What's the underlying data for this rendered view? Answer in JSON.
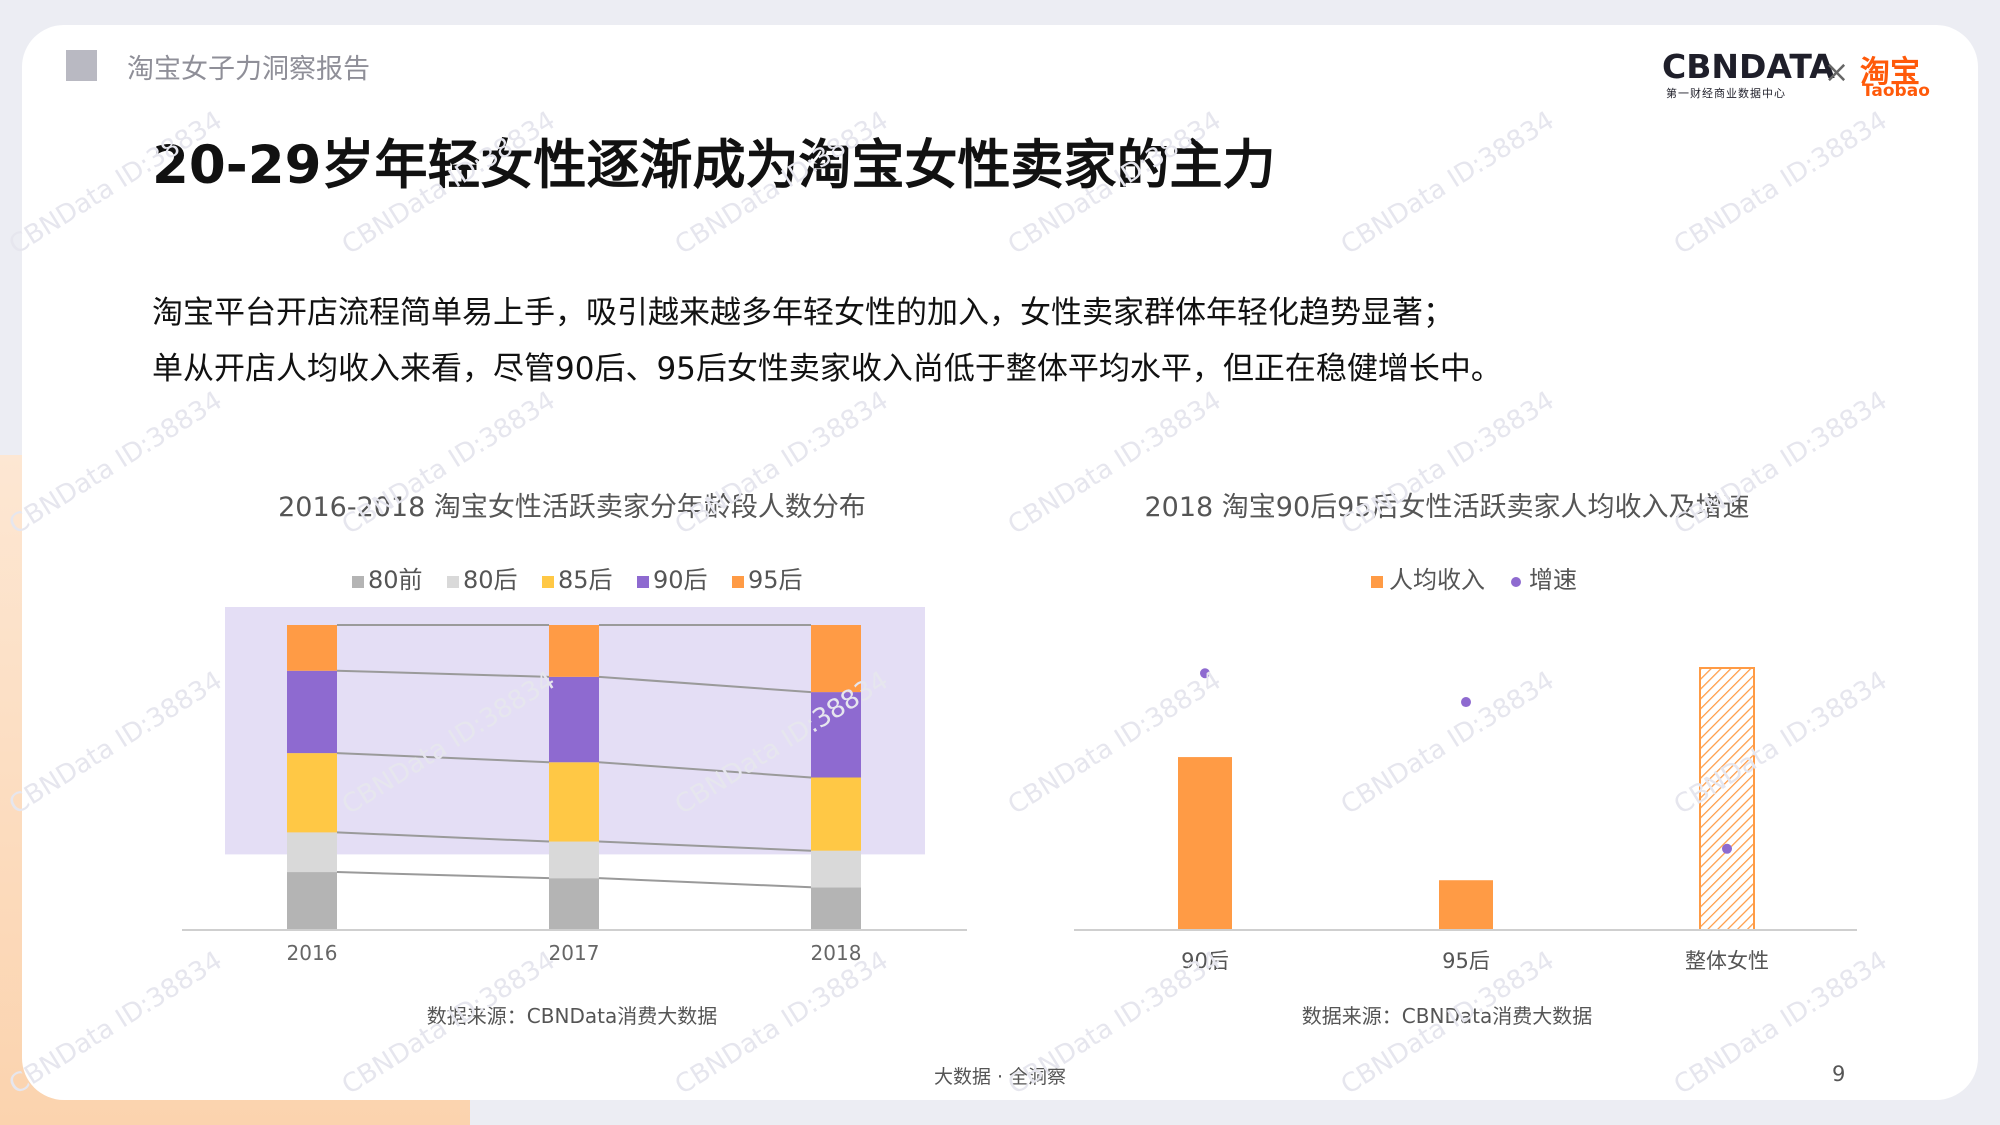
{
  "header": {
    "report_name": "淘宝女子力洞察报告"
  },
  "logos": {
    "cbn": "CBNDATA",
    "cbn_sub": "第一财经商业数据中心",
    "separator": "×",
    "taobao": "淘宝",
    "taobao_sub": "Taobao"
  },
  "title": "20-29岁年轻女性逐渐成为淘宝女性卖家的主力",
  "body": [
    "淘宝平台开店流程简单易上手，吸引越来越多年轻女性的加入，女性卖家群体年轻化趋势显著；",
    "单从开店人均收入来看，尽管90后、95后女性卖家收入尚低于整体平均水平，但正在稳健增长中。"
  ],
  "colors": {
    "c80qian": "#b4b4b4",
    "c80hou": "#d9d9d9",
    "c85hou": "#ffc845",
    "c90hou": "#8e6ad0",
    "c95hou": "#ff9b45",
    "highlight": "#e4def5",
    "dot": "#8e6ad0"
  },
  "chart_data": [
    {
      "type": "bar",
      "stacked": true,
      "title": "2016-2018 淘宝女性活跃卖家分年龄段人数分布",
      "categories": [
        "2016",
        "2017",
        "2018"
      ],
      "series": [
        {
          "name": "80前",
          "values": [
            19,
            17,
            14
          ]
        },
        {
          "name": "80后",
          "values": [
            13,
            12,
            12
          ]
        },
        {
          "name": "85后",
          "values": [
            26,
            26,
            24
          ]
        },
        {
          "name": "90后",
          "values": [
            27,
            28,
            28
          ]
        },
        {
          "name": "95后",
          "values": [
            15,
            17,
            22
          ]
        }
      ],
      "ylim": [
        0,
        100
      ],
      "legend": "top",
      "source": "数据来源：CBNData消费大数据"
    },
    {
      "type": "bar",
      "title": "2018 淘宝90后95后女性活跃卖家人均收入及增速",
      "categories": [
        "90后",
        "95后",
        "整体女性"
      ],
      "series": [
        {
          "name": "人均收入",
          "values": [
            66,
            19,
            100
          ]
        },
        {
          "name": "增速",
          "type": "scatter",
          "values": [
            98,
            87,
            31
          ]
        }
      ],
      "ylim": [
        0,
        100
      ],
      "legend": "top",
      "source": "数据来源：CBNData消费大数据"
    }
  ],
  "footer": {
    "slogan": "大数据 · 全洞察",
    "page": "9"
  },
  "watermark": "CBNData ID:38834"
}
